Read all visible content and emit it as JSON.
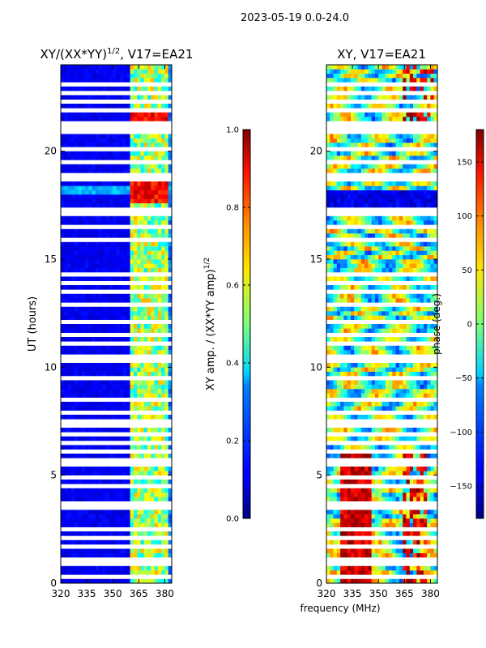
{
  "suptitle": "2023-05-19 0.0-24.0",
  "xlabel_shared": "frequency (MHz)",
  "chart_data": [
    {
      "type": "heatmap",
      "title": "XY/(XX*YY)",
      "title_sup": "1/2",
      "title_tail": ", V17=EA21",
      "xlabel": "",
      "ylabel": "UT (hours)",
      "xlim": [
        320,
        384
      ],
      "ylim": [
        0,
        24
      ],
      "xticks": [
        320,
        335,
        350,
        365,
        380
      ],
      "yticks": [
        0,
        5,
        10,
        15,
        20
      ],
      "colorbar": {
        "label": "XY amp. / (XX*YY amp)",
        "label_sup": "1/2",
        "min": 0.0,
        "max": 1.0,
        "ticks": [
          "0.0",
          "0.2",
          "0.4",
          "0.6",
          "0.8",
          "1.0"
        ],
        "tick_values": [
          0.0,
          0.2,
          0.4,
          0.6,
          0.8,
          1.0
        ],
        "colormap": "jet"
      },
      "bright_channel_bands_mhz": [
        [
          361,
          366
        ],
        [
          367,
          372
        ],
        [
          373,
          378
        ],
        [
          379,
          382
        ]
      ],
      "hot_times_h": [
        17.8,
        18.3,
        21.3,
        21.8
      ],
      "gap_rows_h": [
        0.3,
        0.8,
        1.2,
        1.6,
        2.1,
        2.5,
        3.4,
        3.6,
        4.5,
        4.9,
        5.6,
        5.8,
        6.1,
        6.5,
        6.9,
        7.3,
        7.6,
        7.9,
        8.6,
        9.4,
        10.3,
        10.5,
        11.1,
        11.5,
        12.1,
        12.9,
        13.4,
        13.8,
        14.3,
        15.9,
        16.5,
        17.1,
        17.4,
        18.6,
        18.9,
        19.5,
        20.2,
        20.8,
        21.0,
        21.4,
        21.9,
        22.3,
        22.6,
        23.0
      ]
    },
    {
      "type": "heatmap",
      "title": "XY, V17=EA21",
      "xlabel": "frequency (MHz)",
      "ylabel": "",
      "xlim": [
        320,
        384
      ],
      "ylim": [
        0,
        24
      ],
      "xticks": [
        320,
        335,
        350,
        365,
        380
      ],
      "yticks": [
        0,
        5,
        10,
        15,
        20
      ],
      "colorbar": {
        "label": "phase (deg.)",
        "min": -180,
        "max": 180,
        "ticks": [
          "−150",
          "−100",
          "−50",
          "0",
          "50",
          "100",
          "150"
        ],
        "tick_values": [
          -150,
          -100,
          -50,
          0,
          50,
          100,
          150
        ],
        "colormap": "jet"
      },
      "gap_rows_h": [
        0.3,
        0.8,
        1.2,
        1.6,
        2.1,
        2.5,
        3.4,
        3.6,
        4.5,
        4.9,
        5.6,
        5.8,
        6.1,
        6.5,
        6.9,
        7.3,
        7.6,
        7.9,
        8.6,
        9.4,
        10.3,
        10.5,
        11.1,
        11.5,
        12.1,
        12.9,
        13.4,
        13.8,
        14.3,
        15.9,
        16.5,
        17.1,
        17.4,
        18.6,
        18.9,
        19.5,
        20.2,
        20.8,
        21.0,
        21.4,
        21.9,
        22.3,
        22.6,
        23.0
      ]
    }
  ]
}
